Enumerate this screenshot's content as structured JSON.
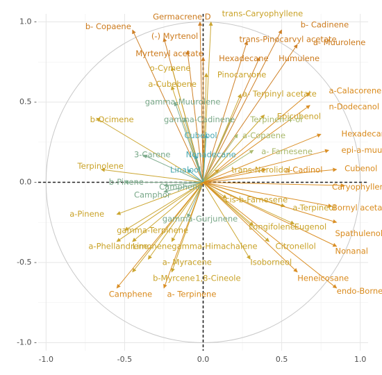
{
  "chart_data": {
    "type": "scatter",
    "title": "",
    "xlabel": "",
    "ylabel": "",
    "xlim": [
      -1.05,
      1.05
    ],
    "ylim": [
      -1.05,
      1.05
    ],
    "x_ticks": [
      -1.0,
      -0.5,
      0.0,
      0.5,
      1.0
    ],
    "y_ticks": [
      -1.0,
      -0.5,
      0.0,
      0.5,
      1.0
    ],
    "x_tick_labels": [
      "-1.0",
      "-0.5",
      "0.0",
      "0.5",
      "1.0"
    ],
    "y_tick_labels": [
      "-1.0 -",
      "-0.5 -",
      "0.0 -",
      "0.5 -",
      "1.0 -"
    ],
    "grid": true,
    "unit_circle": true,
    "vectors": [
      {
        "label": "trans-Caryophyllene",
        "x": 0.05,
        "y": 1.0,
        "lx": 0.12,
        "ly": 1.05,
        "color": "#c9a227"
      },
      {
        "label": "Germacrene D",
        "x": -0.02,
        "y": 1.0,
        "lx": -0.32,
        "ly": 1.03,
        "color": "#cc7a1c"
      },
      {
        "label": "b- Cadinene",
        "x": 0.5,
        "y": 0.95,
        "lx": 0.62,
        "ly": 0.98,
        "color": "#cc7a1c"
      },
      {
        "label": "b- Copaene",
        "x": -0.45,
        "y": 0.95,
        "lx": -0.75,
        "ly": 0.97,
        "color": "#cc7a1c"
      },
      {
        "label": "(-) Myrtenol",
        "x": -0.25,
        "y": 0.9,
        "lx": -0.33,
        "ly": 0.91,
        "color": "#cc7a1c"
      },
      {
        "label": "trans-Pinocarvyl acetate",
        "x": 0.28,
        "y": 0.88,
        "lx": 0.23,
        "ly": 0.89,
        "color": "#cc7a1c"
      },
      {
        "label": "a- Muurolene",
        "x": 0.6,
        "y": 0.86,
        "lx": 0.7,
        "ly": 0.87,
        "color": "#cc7a1c"
      },
      {
        "label": "Myrtenyl acetate",
        "x": -0.1,
        "y": 0.82,
        "lx": -0.43,
        "ly": 0.8,
        "color": "#cc7a1c"
      },
      {
        "label": "Hexadecane",
        "x": 0.0,
        "y": 0.78,
        "lx": 0.1,
        "ly": 0.77,
        "color": "#cc7a1c"
      },
      {
        "label": "Humulene",
        "x": 0.36,
        "y": 0.78,
        "lx": 0.48,
        "ly": 0.77,
        "color": "#cc7a1c"
      },
      {
        "label": "o-Cymene",
        "x": -0.2,
        "y": 0.72,
        "lx": -0.34,
        "ly": 0.71,
        "color": "#c9a227"
      },
      {
        "label": "Pinocarvone",
        "x": 0.02,
        "y": 0.68,
        "lx": 0.09,
        "ly": 0.67,
        "color": "#c9a227"
      },
      {
        "label": "a-Cubebene",
        "x": -0.2,
        "y": 0.6,
        "lx": -0.35,
        "ly": 0.61,
        "color": "#c9a227"
      },
      {
        "label": "a- Terpinyl acetate",
        "x": 0.24,
        "y": 0.55,
        "lx": 0.25,
        "ly": 0.55,
        "color": "#c9a227"
      },
      {
        "label": "a-Calacorene",
        "x": 0.68,
        "y": 0.56,
        "lx": 0.8,
        "ly": 0.57,
        "color": "#d98a1c"
      },
      {
        "label": "gamma-Muurolene",
        "x": -0.18,
        "y": 0.5,
        "lx": -0.37,
        "ly": 0.5,
        "color": "#79a889"
      },
      {
        "label": "n-Dodecanol",
        "x": 0.68,
        "y": 0.48,
        "lx": 0.8,
        "ly": 0.47,
        "color": "#d98a1c"
      },
      {
        "label": "Epicubenol",
        "x": 0.39,
        "y": 0.42,
        "lx": 0.47,
        "ly": 0.41,
        "color": "#c9a227"
      },
      {
        "label": "b-Ocimene",
        "x": -0.68,
        "y": 0.4,
        "lx": -0.72,
        "ly": 0.39,
        "color": "#c9a227"
      },
      {
        "label": "gamma-Cadinene",
        "x": -0.12,
        "y": 0.4,
        "lx": -0.25,
        "ly": 0.39,
        "color": "#79a889"
      },
      {
        "label": "Terpinen-4-ol",
        "x": 0.18,
        "y": 0.4,
        "lx": 0.3,
        "ly": 0.39,
        "color": "#a8b86a"
      },
      {
        "label": "Hexadecane",
        "x": 0.75,
        "y": 0.3,
        "lx": 0.88,
        "ly": 0.3,
        "color": "#d98a1c"
      },
      {
        "label": "a-Copaene",
        "x": 0.22,
        "y": 0.3,
        "lx": 0.25,
        "ly": 0.29,
        "color": "#a8b86a"
      },
      {
        "label": "Cubebol",
        "x": 0.02,
        "y": 0.3,
        "lx": -0.12,
        "ly": 0.29,
        "color": "#4aa8b0"
      },
      {
        "label": "a- Farnesene",
        "x": 0.32,
        "y": 0.2,
        "lx": 0.37,
        "ly": 0.19,
        "color": "#a8b86a"
      },
      {
        "label": "epi-a-muurolol",
        "x": 0.8,
        "y": 0.2,
        "lx": 0.88,
        "ly": 0.2,
        "color": "#d98a1c"
      },
      {
        "label": "3-Carene",
        "x": -0.38,
        "y": 0.17,
        "lx": -0.44,
        "ly": 0.17,
        "color": "#79a889"
      },
      {
        "label": "Nonadecane",
        "x": -0.05,
        "y": 0.17,
        "lx": -0.11,
        "ly": 0.17,
        "color": "#4aa8b0"
      },
      {
        "label": "Terpinolene",
        "x": -0.65,
        "y": 0.08,
        "lx": -0.8,
        "ly": 0.1,
        "color": "#c9a227"
      },
      {
        "label": "Linalool",
        "x": -0.1,
        "y": 0.08,
        "lx": -0.21,
        "ly": 0.075,
        "color": "#4aa8b0"
      },
      {
        "label": "trans-Nerolidol",
        "x": 0.1,
        "y": 0.08,
        "lx": 0.18,
        "ly": 0.075,
        "color": "#c9a227"
      },
      {
        "label": "a-Cadinol",
        "x": 0.4,
        "y": 0.08,
        "lx": 0.52,
        "ly": 0.075,
        "color": "#d98a1c"
      },
      {
        "label": "Cubenol",
        "x": 0.85,
        "y": 0.08,
        "lx": 0.9,
        "ly": 0.085,
        "color": "#d98a1c"
      },
      {
        "label": "Caryophyllene oxide",
        "x": 0.9,
        "y": -0.02,
        "lx": 0.82,
        "ly": -0.03,
        "color": "#d98a1c"
      },
      {
        "label": "b-Pinene",
        "x": -0.5,
        "y": 0.0,
        "lx": -0.6,
        "ly": 0.0,
        "color": "#79a889"
      },
      {
        "label": "Camphene",
        "x": -0.25,
        "y": -0.02,
        "lx": -0.28,
        "ly": -0.03,
        "color": "#79a889"
      },
      {
        "label": "Camphor",
        "x": -0.25,
        "y": -0.06,
        "lx": -0.44,
        "ly": -0.08,
        "color": "#79a889"
      },
      {
        "label": "cis-b-Farnesene",
        "x": 0.15,
        "y": -0.1,
        "lx": 0.14,
        "ly": -0.11,
        "color": "#c9a227"
      },
      {
        "label": "a-Terpineol",
        "x": 0.52,
        "y": -0.15,
        "lx": 0.57,
        "ly": -0.16,
        "color": "#c9a227"
      },
      {
        "label": "Bornyl acetate",
        "x": 0.82,
        "y": -0.15,
        "lx": 0.82,
        "ly": -0.16,
        "color": "#d98a1c"
      },
      {
        "label": "a-Pinene",
        "x": -0.55,
        "y": -0.2,
        "lx": -0.85,
        "ly": -0.2,
        "color": "#c9a227"
      },
      {
        "label": "gamma-Gurjunene",
        "x": -0.1,
        "y": -0.22,
        "lx": -0.26,
        "ly": -0.23,
        "color": "#79a889"
      },
      {
        "label": "Longifolene",
        "x": 0.32,
        "y": -0.27,
        "lx": 0.29,
        "ly": -0.28,
        "color": "#c9a227"
      },
      {
        "label": "Eugenol",
        "x": 0.58,
        "y": -0.26,
        "lx": 0.58,
        "ly": -0.28,
        "color": "#c9a227"
      },
      {
        "label": "Spathulenol",
        "x": 0.85,
        "y": -0.25,
        "lx": 0.84,
        "ly": -0.32,
        "color": "#d98a1c"
      },
      {
        "label": "gamma-Terpinene",
        "x": -0.5,
        "y": -0.3,
        "lx": -0.55,
        "ly": -0.3,
        "color": "#c9a227"
      },
      {
        "label": "a-Phellandrene",
        "x": -0.55,
        "y": -0.37,
        "lx": -0.73,
        "ly": -0.4,
        "color": "#c9a227"
      },
      {
        "label": "Limonene",
        "x": -0.45,
        "y": -0.37,
        "lx": -0.45,
        "ly": -0.4,
        "color": "#c9a227"
      },
      {
        "label": "gamma-Himachalene",
        "x": -0.2,
        "y": -0.37,
        "lx": -0.2,
        "ly": -0.4,
        "color": "#c9a227"
      },
      {
        "label": "Citronellol",
        "x": 0.42,
        "y": -0.37,
        "lx": 0.46,
        "ly": -0.4,
        "color": "#c9a227"
      },
      {
        "label": "Nonanal",
        "x": 0.85,
        "y": -0.4,
        "lx": 0.84,
        "ly": -0.43,
        "color": "#d98a1c"
      },
      {
        "label": "a- Myracene",
        "x": -0.35,
        "y": -0.48,
        "lx": -0.26,
        "ly": -0.5,
        "color": "#c9a227"
      },
      {
        "label": "Isoborneol",
        "x": 0.3,
        "y": -0.48,
        "lx": 0.3,
        "ly": -0.5,
        "color": "#c9a227"
      },
      {
        "label": "b-Myrcene",
        "x": -0.45,
        "y": -0.56,
        "lx": -0.32,
        "ly": -0.6,
        "color": "#c9a227"
      },
      {
        "label": "1,8-Cineole",
        "x": -0.2,
        "y": -0.56,
        "lx": -0.05,
        "ly": -0.6,
        "color": "#c9a227"
      },
      {
        "label": "Heneicosane",
        "x": 0.6,
        "y": -0.56,
        "lx": 0.6,
        "ly": -0.6,
        "color": "#d98a1c"
      },
      {
        "label": "Camphene",
        "x": -0.55,
        "y": -0.66,
        "lx": -0.6,
        "ly": -0.7,
        "color": "#d98a1c"
      },
      {
        "label": "a- Terpinene",
        "x": -0.25,
        "y": -0.66,
        "lx": -0.23,
        "ly": -0.7,
        "color": "#d98a1c"
      },
      {
        "label": "endo-Borneol",
        "x": 0.85,
        "y": -0.66,
        "lx": 0.85,
        "ly": -0.68,
        "color": "#d98a1c"
      }
    ]
  }
}
